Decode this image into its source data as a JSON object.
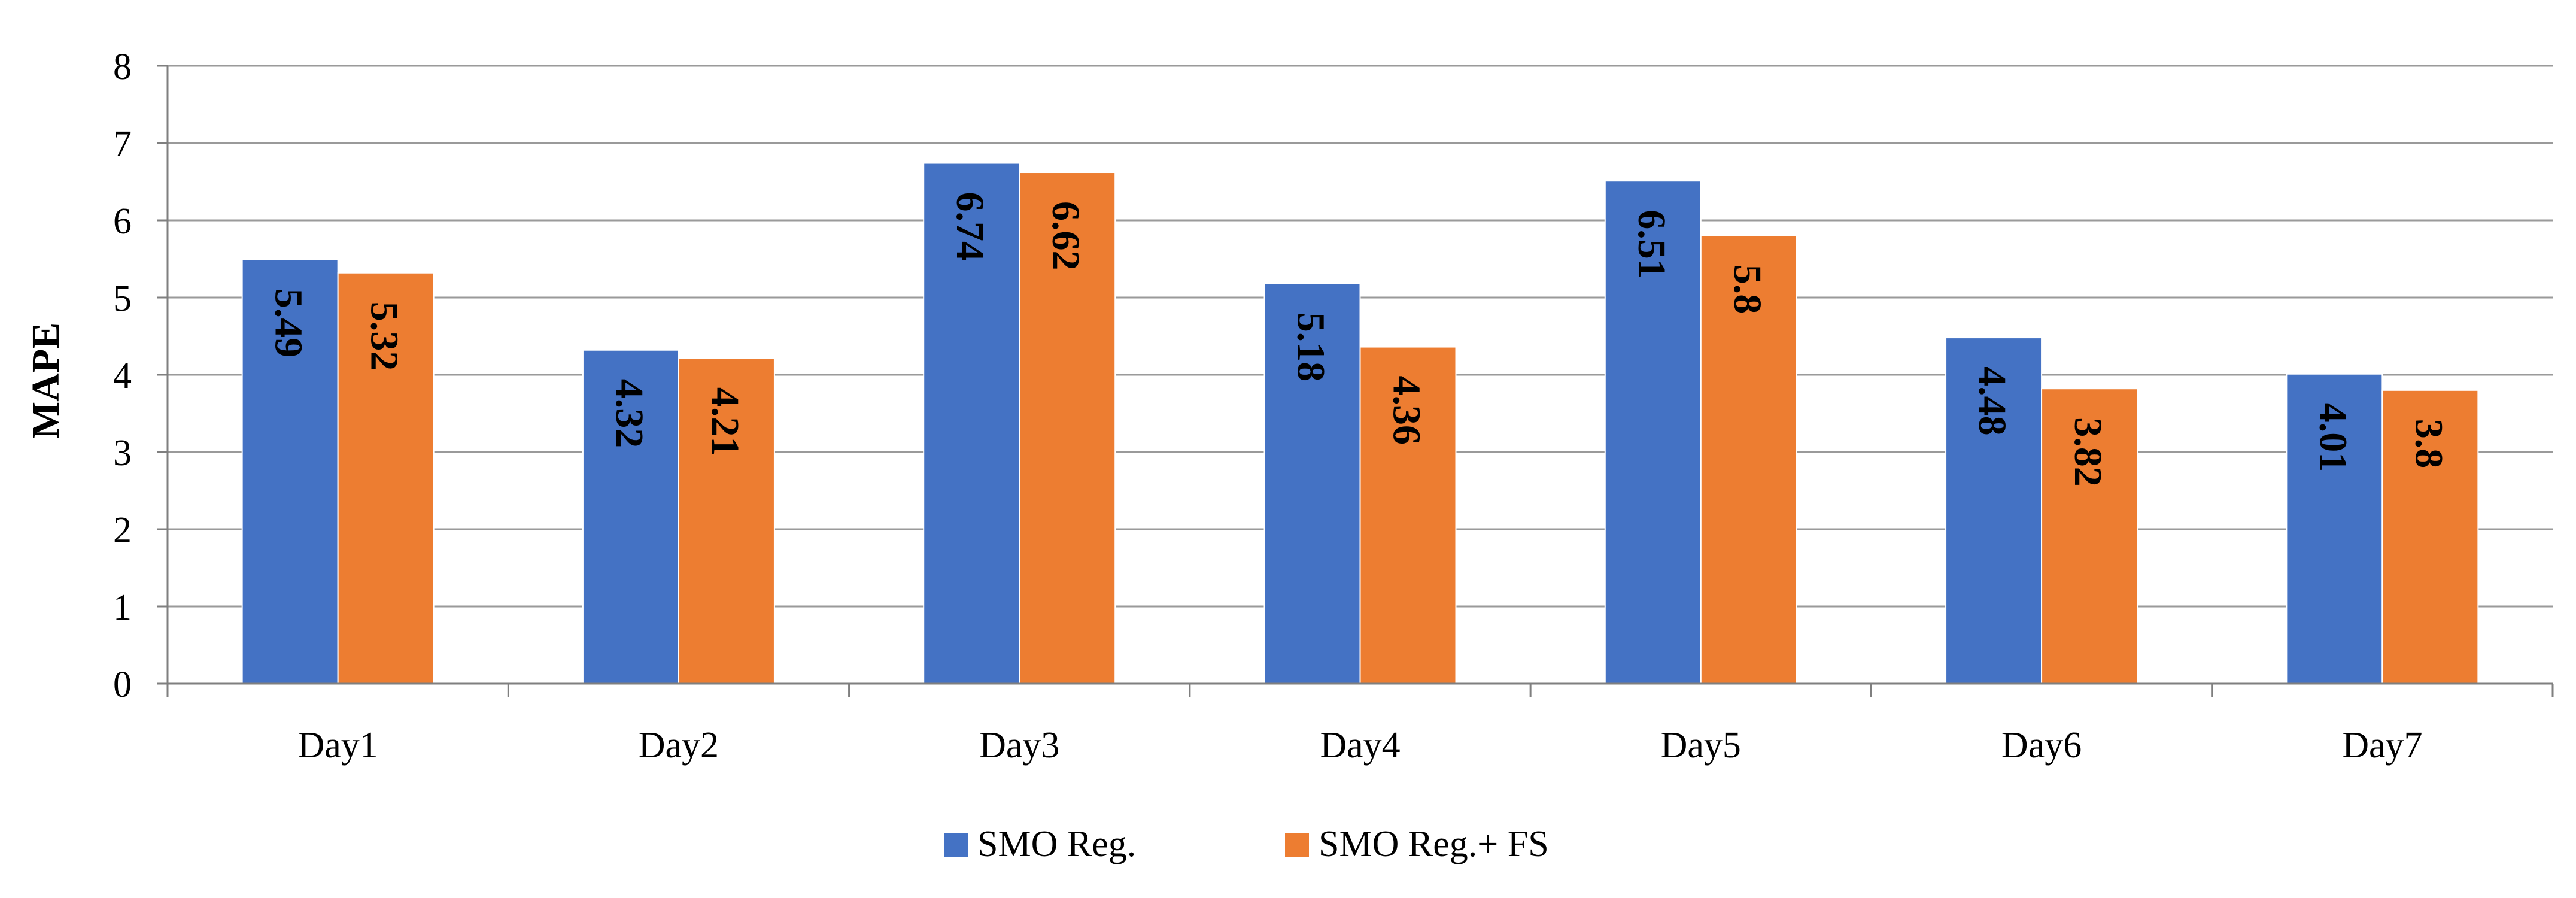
{
  "chart_data": {
    "type": "bar",
    "title": "",
    "xlabel": "",
    "ylabel": "MAPE",
    "ylim": [
      0,
      8
    ],
    "yticks": [
      "0",
      "1",
      "2",
      "3",
      "4",
      "5",
      "6",
      "7",
      "8"
    ],
    "grid": true,
    "legend_position": "bottom",
    "categories": [
      "Day1",
      "Day2",
      "Day3",
      "Day4",
      "Day5",
      "Day6",
      "Day7"
    ],
    "series": [
      {
        "name": "SMO Reg.",
        "color": "#4472C4",
        "values": [
          5.49,
          4.32,
          6.74,
          5.18,
          6.51,
          4.48,
          4.01
        ],
        "labels": [
          "5.49",
          "4.32",
          "6.74",
          "5.18",
          "6.51",
          "4.48",
          "4.01"
        ]
      },
      {
        "name": "SMO Reg.+ FS",
        "color": "#ED7D31",
        "values": [
          5.32,
          4.21,
          6.62,
          4.36,
          5.8,
          3.82,
          3.8
        ],
        "labels": [
          "5.32",
          "4.21",
          "6.62",
          "4.36",
          "5.8",
          "3.82",
          "3.8"
        ]
      }
    ]
  }
}
